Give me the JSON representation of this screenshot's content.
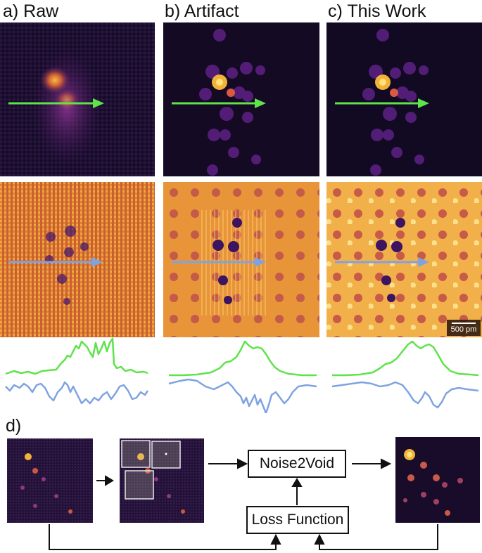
{
  "panels": {
    "a": "a) Raw",
    "b": "b) Artifact",
    "c": "c) This Work",
    "d": "d)"
  },
  "scalebar": "500 pm",
  "diagram": {
    "noise2void": "Noise2Void",
    "loss_function": "Loss Function"
  },
  "colors": {
    "green_profile": "#5ee34a",
    "blue_profile": "#7ea3e0",
    "magma_dark": "#1a0f2e",
    "heat_orange": "#e58a2a"
  }
}
